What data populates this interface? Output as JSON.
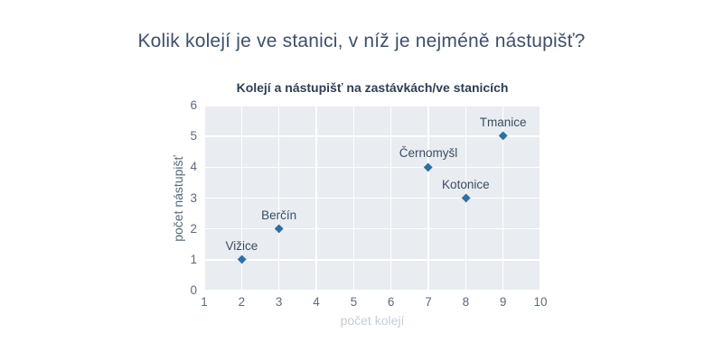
{
  "page": {
    "title": "Kolik kolejí je ve stanici, v níž je nejméně nástupišť?"
  },
  "chart_data": {
    "type": "scatter",
    "title": "Kolejí a nástupišť na zastávkách/ve stanicích",
    "xlabel": "počet kolejí",
    "ylabel": "počet nástupišť",
    "xlim": [
      1,
      10
    ],
    "ylim": [
      0,
      6
    ],
    "xticks": [
      1,
      2,
      3,
      4,
      5,
      6,
      7,
      8,
      9,
      10
    ],
    "yticks": [
      0,
      1,
      2,
      3,
      4,
      5,
      6
    ],
    "grid": true,
    "legend": false,
    "marker_symbol": "diamond",
    "points": [
      {
        "label": "Vižice",
        "x": 2,
        "y": 1
      },
      {
        "label": "Berčín",
        "x": 3,
        "y": 2
      },
      {
        "label": "Černomyšl",
        "x": 7,
        "y": 4
      },
      {
        "label": "Kotonice",
        "x": 8,
        "y": 3
      },
      {
        "label": "Tmanice",
        "x": 9,
        "y": 5
      }
    ],
    "colors": {
      "page_title": "#3f4f68",
      "chart_title": "#2e3f54",
      "plot_bg": "#e9edf1",
      "grid": "#ffffff",
      "marker": "#2e70a3",
      "point_label": "#3c4c61",
      "tick_label": "#5c6b7d",
      "y_axis_title": "#56687a",
      "x_axis_title": "#c6cdd6"
    }
  }
}
